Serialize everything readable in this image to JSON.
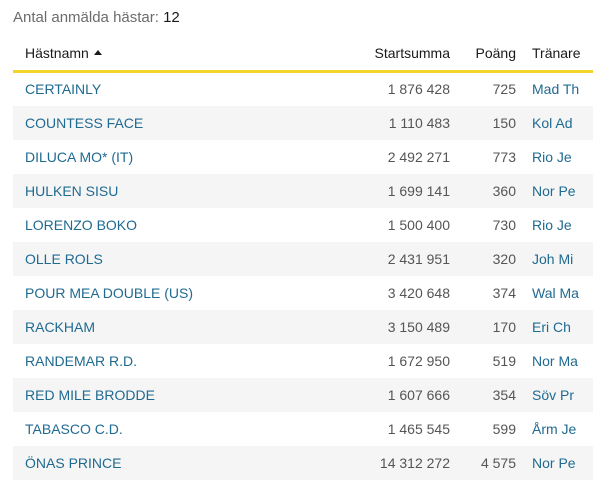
{
  "summary": {
    "label": "Antal anmälda hästar:",
    "count": "12"
  },
  "table": {
    "headers": {
      "name": "Hästnamn",
      "startsumma": "Startsumma",
      "poang": "Poäng",
      "tranare": "Tränare"
    },
    "sort": {
      "column": "name",
      "direction": "ascending"
    },
    "rows": [
      {
        "name": "CERTAINLY",
        "startsumma": "1 876 428",
        "poang": "725",
        "tranare": "Mad Th"
      },
      {
        "name": "COUNTESS FACE",
        "startsumma": "1 110 483",
        "poang": "150",
        "tranare": "Kol Ad"
      },
      {
        "name": "DILUCA MO* (IT)",
        "startsumma": "2 492 271",
        "poang": "773",
        "tranare": "Rio Je"
      },
      {
        "name": "HULKEN SISU",
        "startsumma": "1 699 141",
        "poang": "360",
        "tranare": "Nor Pe"
      },
      {
        "name": "LORENZO BOKO",
        "startsumma": "1 500 400",
        "poang": "730",
        "tranare": "Rio Je"
      },
      {
        "name": "OLLE ROLS",
        "startsumma": "2 431 951",
        "poang": "320",
        "tranare": "Joh Mi"
      },
      {
        "name": "POUR MEA DOUBLE (US)",
        "startsumma": "3 420 648",
        "poang": "374",
        "tranare": "Wal Ma"
      },
      {
        "name": "RACKHAM",
        "startsumma": "3 150 489",
        "poang": "170",
        "tranare": "Eri Ch"
      },
      {
        "name": "RANDEMAR R.D.",
        "startsumma": "1 672 950",
        "poang": "519",
        "tranare": "Nor Ma"
      },
      {
        "name": "RED MILE BRODDE",
        "startsumma": "1 607 666",
        "poang": "354",
        "tranare": "Söv Pr"
      },
      {
        "name": "TABASCO C.D.",
        "startsumma": "1 465 545",
        "poang": "599",
        "tranare": "Årm Je"
      },
      {
        "name": "ÖNAS PRINCE",
        "startsumma": "14 312 272",
        "poang": "4 575",
        "tranare": "Nor Pe"
      }
    ]
  },
  "colors": {
    "link": "#1f6a91",
    "header_underline": "#f2d42a",
    "row_alt": "#f5f5f5",
    "muted_text": "#6b6b6b"
  }
}
